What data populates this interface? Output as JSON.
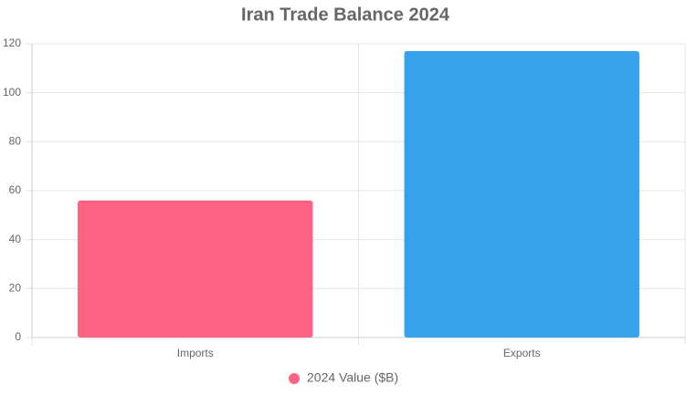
{
  "chart_data": {
    "type": "bar",
    "title": "Iran Trade Balance 2024",
    "categories": [
      "Imports",
      "Exports"
    ],
    "series": [
      {
        "name": "2024 Value ($B)",
        "colors": [
          "#ff6384",
          "#36a2eb"
        ],
        "values": [
          56,
          117
        ]
      }
    ],
    "ylim": [
      0,
      120
    ],
    "yticks": [
      0,
      20,
      40,
      60,
      80,
      100,
      120
    ],
    "grid": true,
    "legend": "bottom"
  }
}
